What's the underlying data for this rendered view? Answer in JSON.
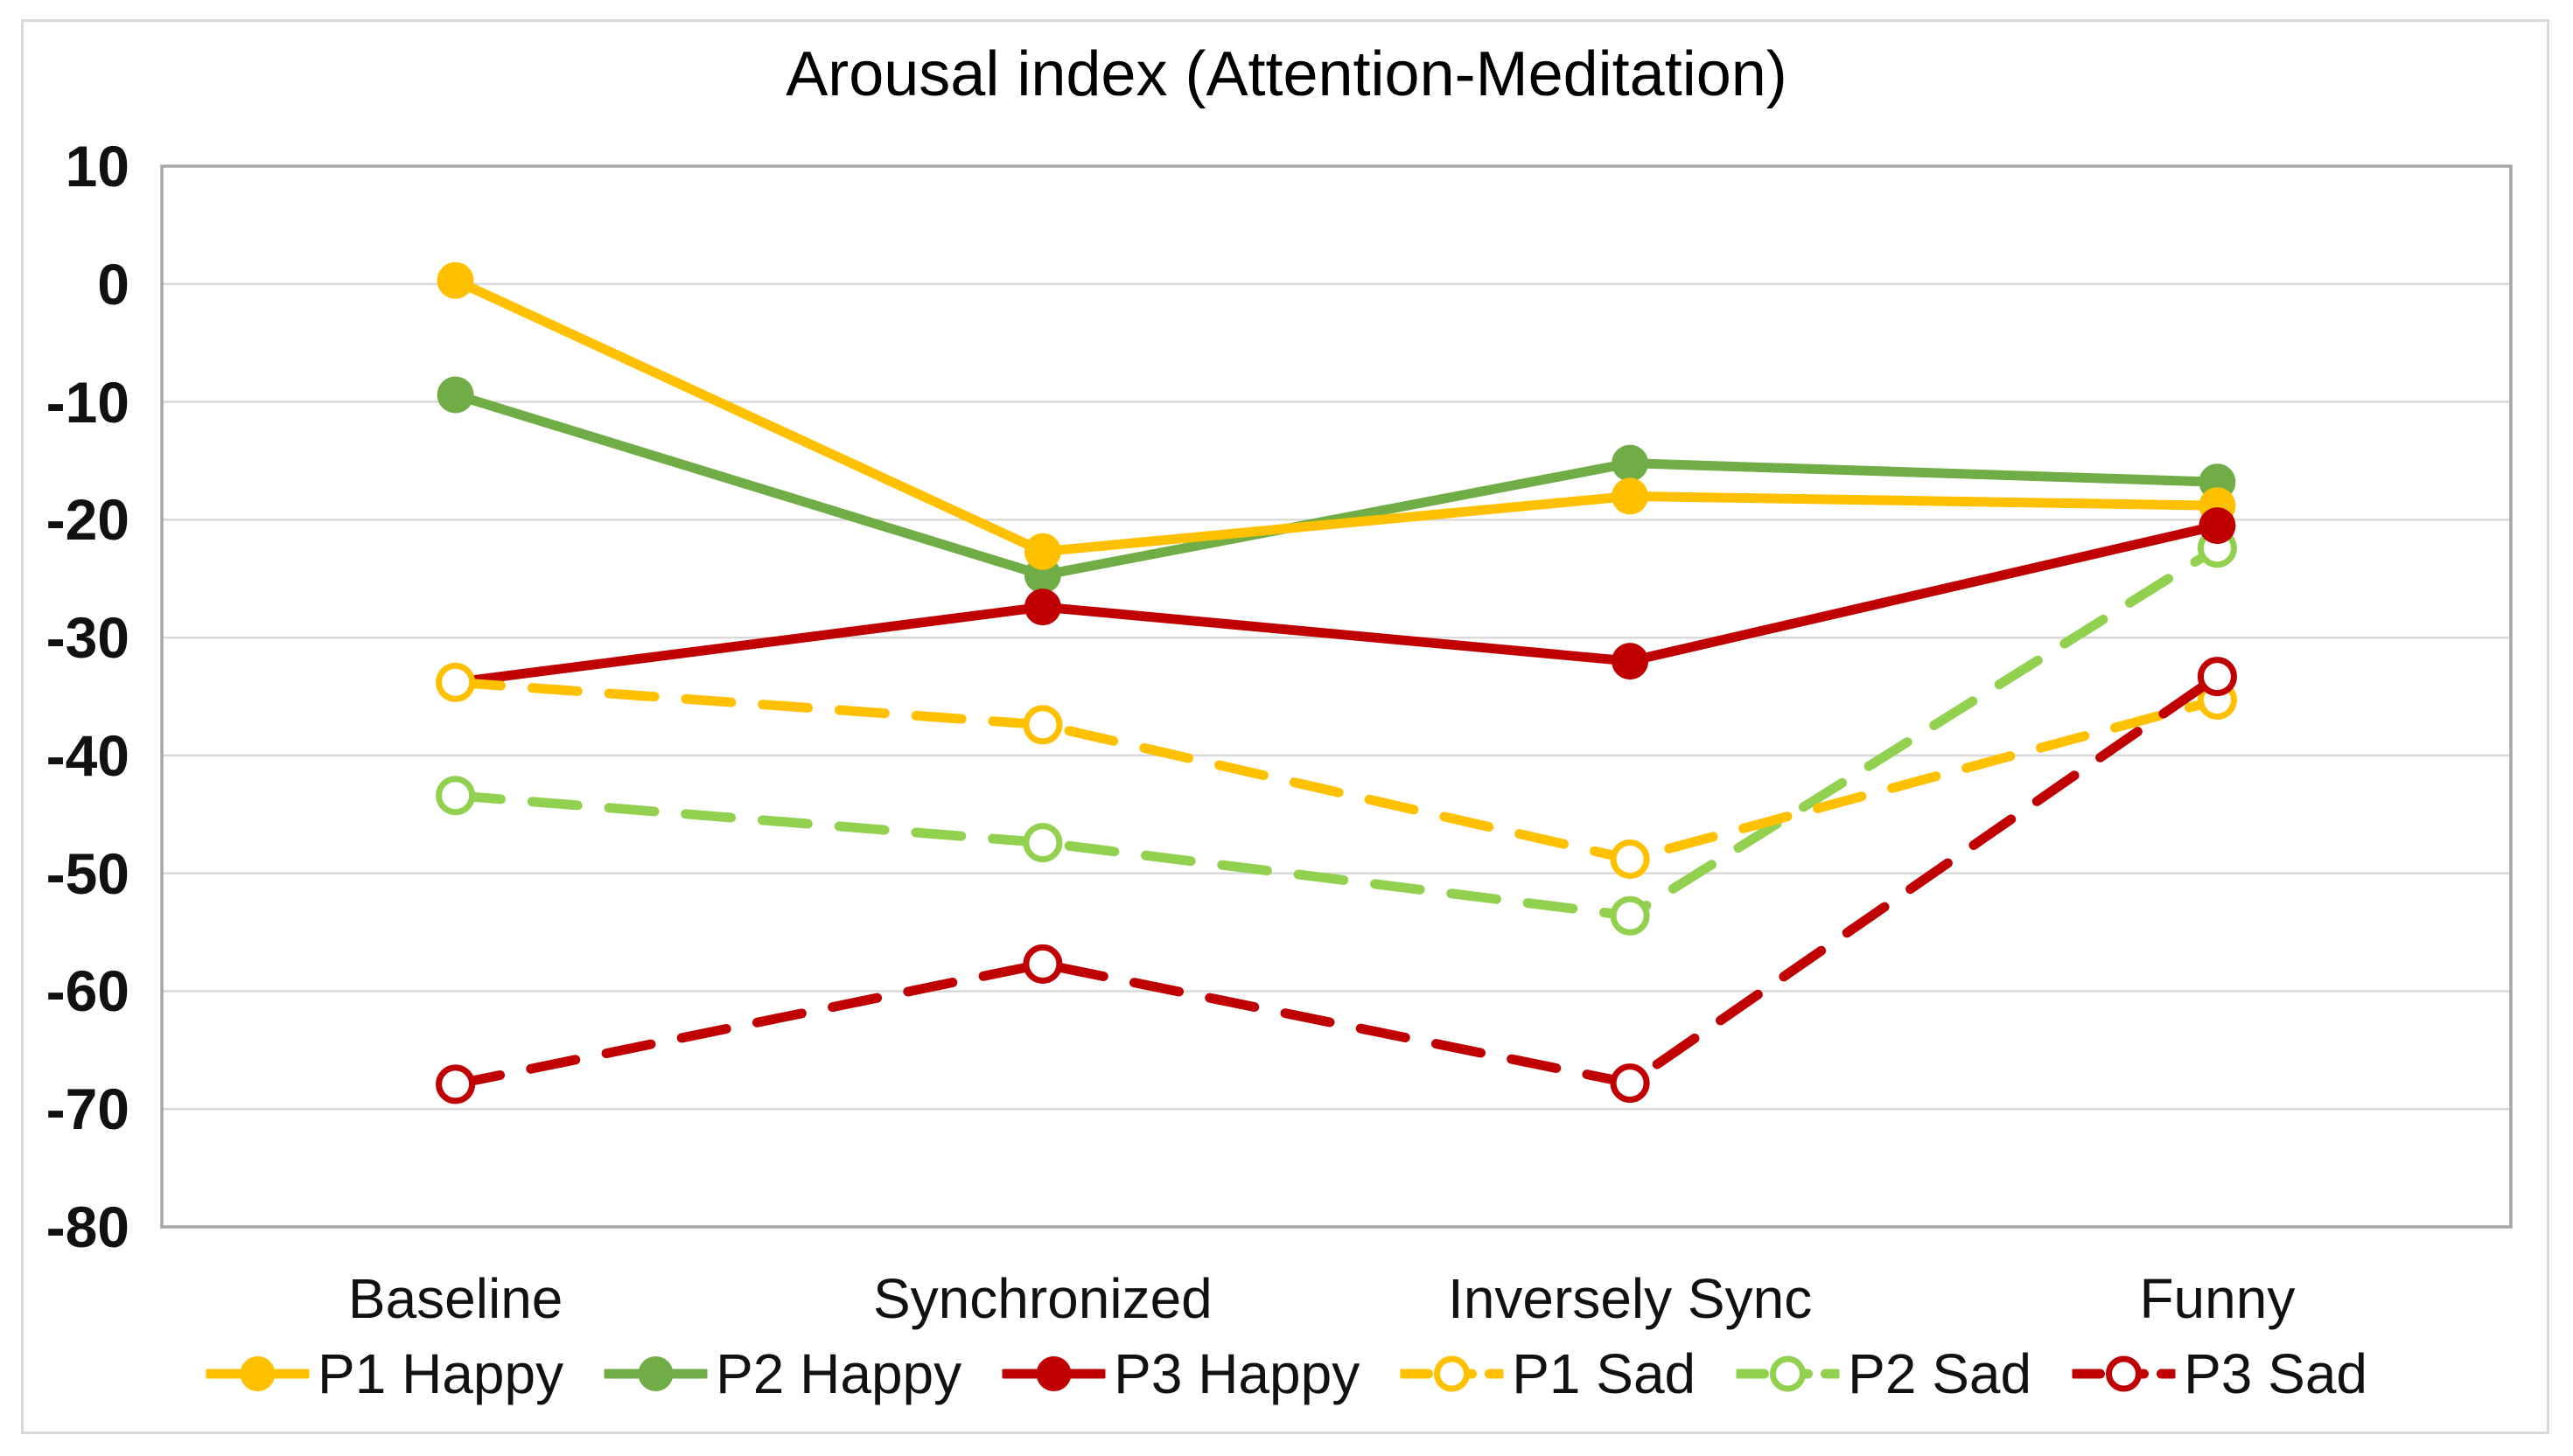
{
  "chart_data": {
    "type": "line",
    "title": "Arousal index (Attention-Meditation)",
    "categories": [
      "Baseline",
      "Synchronized",
      "Inversely Sync",
      "Funny"
    ],
    "series": [
      {
        "name": "P1 Happy",
        "color": "#FFC000",
        "line": "solid",
        "marker": "filled",
        "values": [
          0.3,
          -22.7,
          -18.0,
          -18.8
        ]
      },
      {
        "name": "P2 Happy",
        "color": "#70AD47",
        "line": "solid",
        "marker": "filled",
        "values": [
          -9.4,
          -24.7,
          -15.2,
          -16.8
        ]
      },
      {
        "name": "P3 Happy",
        "color": "#C00000",
        "line": "solid",
        "marker": "filled",
        "values": [
          -33.8,
          -27.4,
          -32.0,
          -20.5
        ]
      },
      {
        "name": "P1 Sad",
        "color": "#FFC000",
        "line": "dashed",
        "marker": "open",
        "values": [
          -33.8,
          -37.4,
          -48.8,
          -35.3
        ]
      },
      {
        "name": "P2 Sad",
        "color": "#92D050",
        "line": "dashed",
        "marker": "open",
        "values": [
          -43.4,
          -47.4,
          -53.6,
          -22.4
        ]
      },
      {
        "name": "P3 Sad",
        "color": "#C00000",
        "line": "dashed",
        "marker": "open",
        "values": [
          -67.9,
          -57.7,
          -67.8,
          -33.3
        ]
      }
    ],
    "ylim": [
      -80,
      10
    ],
    "ytick_step": 10,
    "axis_ticks_y": [
      "10",
      "0",
      "-10",
      "-20",
      "-30",
      "-40",
      "-50",
      "-60",
      "-70",
      "-80"
    ],
    "grid": "horizontal",
    "grid_color": "#D9D9D9",
    "plot_border_color": "#A6A6A6",
    "outer_frame_color": "#D9D9D9",
    "legend_position": "bottom",
    "legend_labels": [
      "P1 Happy",
      "P2 Happy",
      "P3 Happy",
      "P1 Sad",
      "P2 Sad",
      "P3 Sad"
    ]
  }
}
